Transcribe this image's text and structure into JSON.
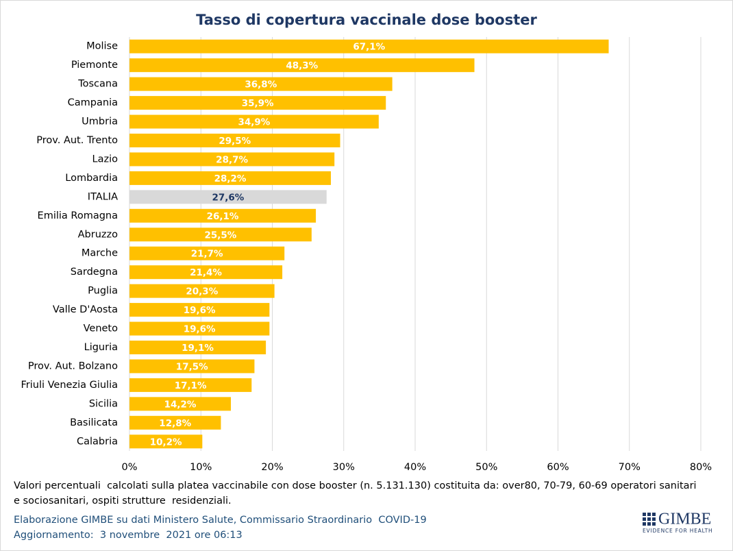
{
  "chart_data": {
    "type": "barh",
    "title": "Tasso di copertura vaccinale dose booster",
    "categories": [
      "Molise",
      "Piemonte",
      "Toscana",
      "Campania",
      "Umbria",
      "Prov. Aut. Trento",
      "Lazio",
      "Lombardia",
      "ITALIA",
      "Emilia Romagna",
      "Abruzzo",
      "Marche",
      "Sardegna",
      "Puglia",
      "Valle D'Aosta",
      "Veneto",
      "Liguria",
      "Prov. Aut. Bolzano",
      "Friuli Venezia Giulia",
      "Sicilia",
      "Basilicata",
      "Calabria"
    ],
    "values": [
      67.1,
      48.3,
      36.8,
      35.9,
      34.9,
      29.5,
      28.7,
      28.2,
      27.6,
      26.1,
      25.5,
      21.7,
      21.4,
      20.3,
      19.6,
      19.6,
      19.1,
      17.5,
      17.1,
      14.2,
      12.8,
      10.2
    ],
    "value_labels": [
      "67,1%",
      "48,3%",
      "36,8%",
      "35,9%",
      "34,9%",
      "29,5%",
      "28,7%",
      "28,2%",
      "27,6%",
      "26,1%",
      "25,5%",
      "21,7%",
      "21,4%",
      "20,3%",
      "19,6%",
      "19,6%",
      "19,1%",
      "17,5%",
      "17,1%",
      "14,2%",
      "12,8%",
      "10,2%"
    ],
    "colors": [
      "#ffc000",
      "#ffc000",
      "#ffc000",
      "#ffc000",
      "#ffc000",
      "#ffc000",
      "#ffc000",
      "#ffc000",
      "#d9d9d9",
      "#ffc000",
      "#ffc000",
      "#ffc000",
      "#ffc000",
      "#ffc000",
      "#ffc000",
      "#ffc000",
      "#ffc000",
      "#ffc000",
      "#ffc000",
      "#ffc000",
      "#ffc000",
      "#ffc000"
    ],
    "label_colors": [
      "#ffffff",
      "#ffffff",
      "#ffffff",
      "#ffffff",
      "#ffffff",
      "#ffffff",
      "#ffffff",
      "#ffffff",
      "#1f3864",
      "#ffffff",
      "#ffffff",
      "#ffffff",
      "#ffffff",
      "#ffffff",
      "#ffffff",
      "#ffffff",
      "#ffffff",
      "#ffffff",
      "#ffffff",
      "#ffffff",
      "#ffffff",
      "#ffffff"
    ],
    "xlim": [
      0,
      80
    ],
    "xticks": [
      {
        "value": 0,
        "label": "0%"
      },
      {
        "value": 10,
        "label": "10%"
      },
      {
        "value": 20,
        "label": "20%"
      },
      {
        "value": 30,
        "label": "30%"
      },
      {
        "value": 40,
        "label": "40%"
      },
      {
        "value": 50,
        "label": "50%"
      },
      {
        "value": 60,
        "label": "60%"
      },
      {
        "value": 70,
        "label": "70%"
      },
      {
        "value": 80,
        "label": "80%"
      }
    ],
    "grid": true,
    "footnote": "Valori percentuali  calcolati sulla platea vaccinabile con dose booster (n. 5.131.130) costituita da: over80, 70-79, 60-69 operatori sanitari e sociosanitari, ospiti strutture  residenziali.",
    "source": "Elaborazione GIMBE su dati Ministero Salute, Commissario Straordinario  COVID-19",
    "updated": "Aggiornamento:  3 novembre  2021 ore 06:13",
    "logo_text": "GIMBE",
    "logo_tagline": "EVIDENCE FOR HEALTH"
  }
}
